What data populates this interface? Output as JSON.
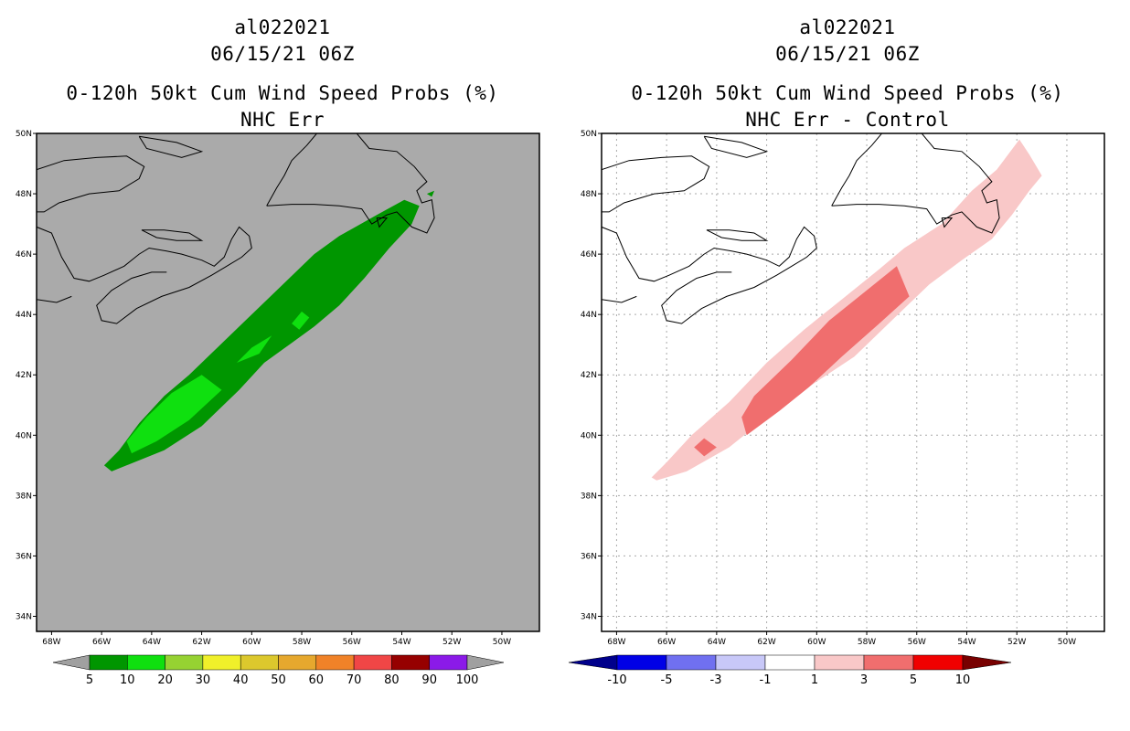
{
  "colors": {
    "land_fill_left": "#aaaaaa",
    "grid": "#aaaaaa",
    "coast": "#000000"
  },
  "chart_data": [
    {
      "type": "heatmap",
      "storm_id": "al022021",
      "datetime": "06/15/21 06Z",
      "title": "0-120h 50kt Cum Wind Speed Probs (%)",
      "subtitle": "NHC Err",
      "x_ticks": [
        "68W",
        "66W",
        "64W",
        "62W",
        "60W",
        "58W",
        "56W",
        "54W",
        "52W",
        "50W"
      ],
      "y_ticks": [
        "50N",
        "48N",
        "46N",
        "44N",
        "42N",
        "40N",
        "38N",
        "36N",
        "34N"
      ],
      "lon_range": [
        68.6,
        48.5
      ],
      "lat_range": [
        33.5,
        50
      ],
      "background": "#aaaaaa",
      "grid": false,
      "levels": [
        5,
        10
      ],
      "level_colors": [
        "#009600",
        "#0fe00f"
      ],
      "colorbar": {
        "labels": [
          "5",
          "10",
          "20",
          "30",
          "40",
          "50",
          "60",
          "70",
          "80",
          "90",
          "100"
        ],
        "colors": [
          "#009600",
          "#0fe00f",
          "#96d232",
          "#f0f02a",
          "#dcc82d",
          "#e6a82e",
          "#f08228",
          "#f04646",
          "#960000",
          "#8b1ae8"
        ],
        "left_arrow": "#a0a0a0",
        "right_arrow": "#a0a0a0"
      }
    },
    {
      "type": "heatmap",
      "storm_id": "al022021",
      "datetime": "06/15/21 06Z",
      "title": "0-120h 50kt Cum Wind Speed Probs (%)",
      "subtitle": "NHC Err - Control",
      "x_ticks": [
        "68W",
        "66W",
        "64W",
        "62W",
        "60W",
        "58W",
        "56W",
        "54W",
        "52W",
        "50W"
      ],
      "y_ticks": [
        "50N",
        "48N",
        "46N",
        "44N",
        "42N",
        "40N",
        "38N",
        "36N",
        "34N"
      ],
      "lon_range": [
        68.6,
        48.5
      ],
      "lat_range": [
        33.5,
        50
      ],
      "background": "#ffffff",
      "grid": true,
      "levels": [
        1,
        3
      ],
      "level_colors": [
        "#f9c8c8",
        "#f06e6e"
      ],
      "colorbar": {
        "labels": [
          "-10",
          "-5",
          "-3",
          "-1",
          "1",
          "3",
          "5",
          "10"
        ],
        "colors": [
          "#0000e6",
          "#7070f0",
          "#c8c8f8",
          "#ffffff",
          "#f9c8c8",
          "#f06e6e",
          "#f00000"
        ],
        "left_arrow": "#00008b",
        "right_arrow": "#780000"
      }
    }
  ]
}
